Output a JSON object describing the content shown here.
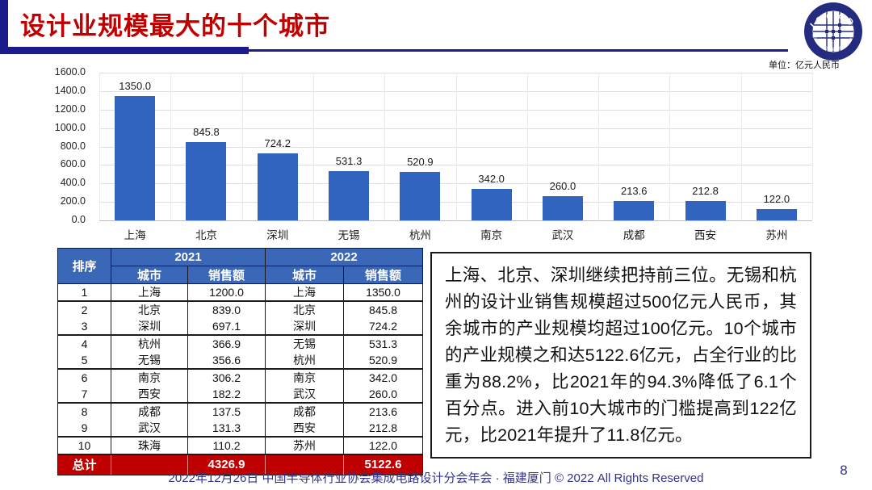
{
  "slide": {
    "title": "设计业规模最大的十个城市",
    "page_number": "8"
  },
  "logo": {
    "arc_top": "ICCAD",
    "arc_bottom": "中国半导体行业协会集成电路设计分会"
  },
  "chart_data": {
    "type": "bar",
    "title": "",
    "xlabel": "",
    "ylabel": "",
    "unit_label": "单位：亿元人民币",
    "categories": [
      "上海",
      "北京",
      "深圳",
      "无锡",
      "杭州",
      "南京",
      "武汉",
      "成都",
      "西安",
      "苏州"
    ],
    "values": [
      1350.0,
      845.8,
      724.2,
      531.3,
      520.9,
      342.0,
      260.0,
      213.6,
      212.8,
      122.0
    ],
    "ylim": [
      0,
      1600
    ],
    "ytick_step": 200,
    "grid": true,
    "legend": false
  },
  "table": {
    "rank_header": "排序",
    "year_headers": [
      "2021",
      "2022"
    ],
    "sub_headers": [
      "城市",
      "销售额",
      "城市",
      "销售额"
    ],
    "rows": [
      [
        "1",
        "上海",
        "1200.0",
        "上海",
        "1350.0"
      ],
      [
        "2",
        "北京",
        "839.0",
        "北京",
        "845.8"
      ],
      [
        "3",
        "深圳",
        "697.1",
        "深圳",
        "724.2"
      ],
      [
        "4",
        "杭州",
        "366.9",
        "无锡",
        "531.3"
      ],
      [
        "5",
        "无锡",
        "356.6",
        "杭州",
        "520.9"
      ],
      [
        "6",
        "南京",
        "306.2",
        "南京",
        "342.0"
      ],
      [
        "7",
        "西安",
        "182.2",
        "武汉",
        "260.0"
      ],
      [
        "8",
        "成都",
        "137.5",
        "成都",
        "213.6"
      ],
      [
        "9",
        "武汉",
        "131.3",
        "西安",
        "212.8"
      ],
      [
        "10",
        "珠海",
        "110.2",
        "苏州",
        "122.0"
      ]
    ],
    "total": {
      "label": "总计",
      "sales_2021": "4326.9",
      "sales_2022": "5122.6"
    }
  },
  "analysis": {
    "text": "上海、北京、深圳继续把持前三位。无锡和杭州的设计业销售规模超过500亿元人民币，其余城市的产业规模均超过100亿元。10个城市的产业规模之和达5122.6亿元，占全行业的比重为88.2%，比2021年的94.3%降低了6.1个百分点。进入前10大城市的门槛提高到122亿元，比2021年提升了11.8亿元。"
  },
  "footer": {
    "text": "2022年12月26日 中国半导体行业协会集成电路设计分会年会 · 福建厦门 © 2022 All Rights Reserved"
  },
  "colors": {
    "accent_red": "#C00000",
    "navy": "#1B1B8C",
    "bar_blue": "#3064BE",
    "table_header_blue": "#3B67B8",
    "total_red": "#C00000",
    "footer_navy": "#33338C",
    "logo_navy": "#252B7E"
  }
}
